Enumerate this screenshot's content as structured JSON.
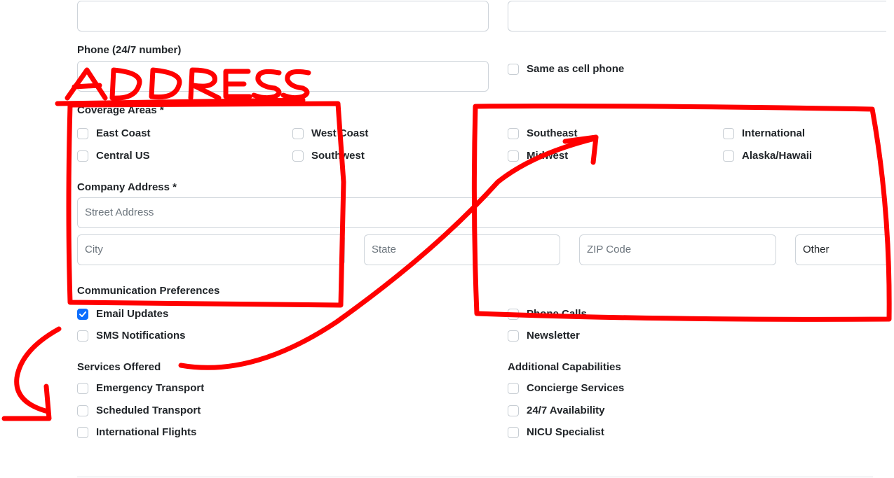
{
  "top_fields": [
    {
      "value": ""
    },
    {
      "value": ""
    }
  ],
  "phone": {
    "label": "Phone (24/7 number)",
    "value": "",
    "same_as_cell_label": "Same as cell phone"
  },
  "annotation": {
    "handwritten_text": "ADDRESS",
    "stroke_color": "#ff0000"
  },
  "coverage": {
    "label": "Coverage Areas *",
    "options": [
      {
        "label": "East Coast",
        "checked": false
      },
      {
        "label": "West Coast",
        "checked": false
      },
      {
        "label": "Southeast",
        "checked": false
      },
      {
        "label": "International",
        "checked": false
      },
      {
        "label": "Central US",
        "checked": false
      },
      {
        "label": "Southwest",
        "checked": false
      },
      {
        "label": "Midwest",
        "checked": false
      },
      {
        "label": "Alaska/Hawaii",
        "checked": false
      }
    ]
  },
  "address": {
    "label": "Company Address *",
    "street_placeholder": "Street Address",
    "city_placeholder": "City",
    "state_placeholder": "State",
    "zip_placeholder": "ZIP Code",
    "other_value": "Other"
  },
  "communication": {
    "label": "Communication Preferences",
    "options": [
      {
        "label": "Email Updates",
        "checked": true
      },
      {
        "label": "Phone Calls",
        "checked": false
      },
      {
        "label": "SMS Notifications",
        "checked": false
      },
      {
        "label": "Newsletter",
        "checked": false
      }
    ]
  },
  "services": {
    "label": "Services Offered",
    "options": [
      {
        "label": "Emergency Transport",
        "checked": false
      },
      {
        "label": "Scheduled Transport",
        "checked": false
      },
      {
        "label": "International Flights",
        "checked": false
      }
    ]
  },
  "capabilities": {
    "label": "Additional Capabilities",
    "options": [
      {
        "label": "Concierge Services",
        "checked": false
      },
      {
        "label": "24/7 Availability",
        "checked": false
      },
      {
        "label": "NICU Specialist",
        "checked": false
      }
    ]
  },
  "colors": {
    "checkbox_checked": "#0d6efd",
    "annotation_red": "#ff0000"
  }
}
